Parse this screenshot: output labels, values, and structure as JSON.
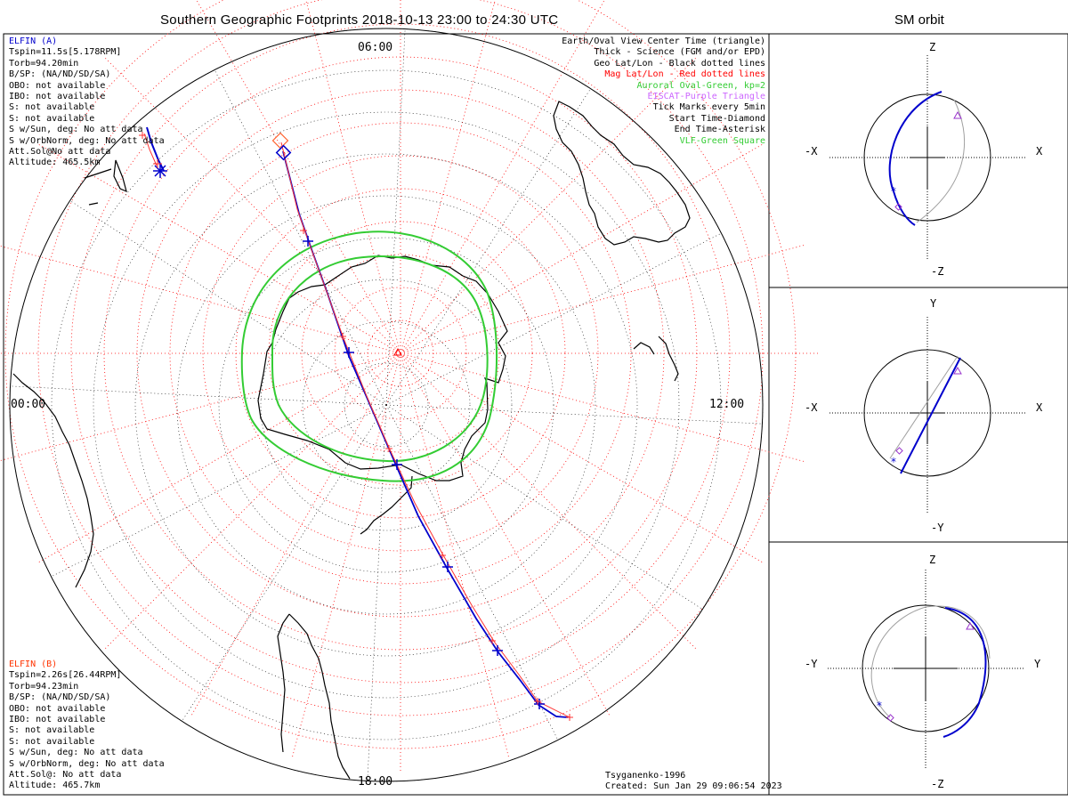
{
  "title": "Southern Geographic Footprints 2018-10-13 23:00 to 24:30 UTC",
  "side_title": "SM orbit",
  "elfin_a": {
    "name": "ELFIN (A)",
    "name_color": "#0000cc",
    "lines": [
      "Tspin=11.5s[5.178RPM]",
      "Torb=94.20min",
      "B/SP: (NA/ND/SD/SA)",
      "OBO: not available",
      "IBO: not available",
      "S: not available",
      "S: not available",
      "S w/Sun, deg: No att data",
      "S w/OrbNorm, deg: No att data",
      "Att.Sol@No att data",
      "Altitude: 465.5km"
    ]
  },
  "elfin_b": {
    "name": "ELFIN (B)",
    "name_color": "#ff3300",
    "lines": [
      "Tspin=2.26s[26.44RPM]",
      "Torb=94.23min",
      "B/SP: (NA/ND/SD/SA)",
      "OBO: not available",
      "IBO: not available",
      "S: not available",
      "S: not available",
      "S w/Sun, deg: No att data",
      "S w/OrbNorm, deg: No att data",
      "Att.Sol@: No att data",
      "Altitude: 465.7km"
    ]
  },
  "legend": [
    {
      "text": "Earth/Oval View Center Time (triangle)",
      "color": "#000000"
    },
    {
      "text": "Thick - Science (FGM and/or EPD)",
      "color": "#000000"
    },
    {
      "text": "Geo Lat/Lon - Black dotted lines",
      "color": "#000000"
    },
    {
      "text": "Mag Lat/Lon - Red dotted lines",
      "color": "#ff0000"
    },
    {
      "text": "Auroral Oval-Green, kp=2",
      "color": "#33cc33"
    },
    {
      "text": "EISCAT-Purple Triangle",
      "color": "#cc66ff"
    },
    {
      "text": "Tick Marks every 5min",
      "color": "#000000"
    },
    {
      "text": "Start Time-Diamond",
      "color": "#000000"
    },
    {
      "text": "End Time-Asterisk",
      "color": "#000000"
    },
    {
      "text": "VLF-Green Square",
      "color": "#33cc33"
    }
  ],
  "clock_labels": {
    "top": "06:00",
    "left": "00:00",
    "right": "12:00",
    "bottom": "18:00"
  },
  "credits": [
    "Tsyganenko-1996",
    "Created: Sun Jan 29 09:06:54 2023"
  ],
  "panels": [
    {
      "name": "xz",
      "top": "Z",
      "bottom": "-Z",
      "left": "-X",
      "right": "X"
    },
    {
      "name": "xy",
      "top": "Y",
      "bottom": "-Y",
      "left": "-X",
      "right": "X"
    },
    {
      "name": "yz",
      "top": "Z",
      "bottom": "-Z",
      "left": "-Y",
      "right": "Y"
    }
  ],
  "colors": {
    "elfin_a_track": "#0000cc",
    "elfin_b_track": "#ff3333",
    "oval": "#33cc33",
    "mag_grid": "#ff0000",
    "geo_grid": "#000000",
    "orbit_back": "#a0a0a0"
  }
}
